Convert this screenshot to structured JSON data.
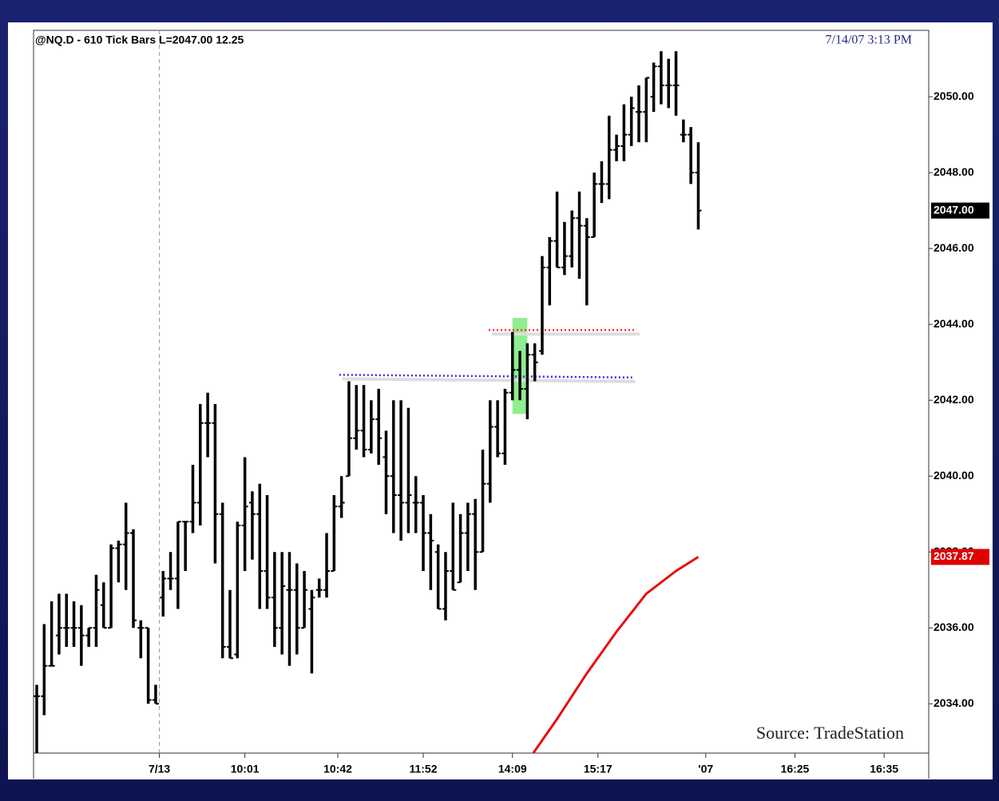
{
  "chart_data": {
    "type": "ohlc",
    "title": "@NQ.D - 610 Tick Bars  L=2047.00  12.25",
    "timestamp": "7/14/07 3:13 PM",
    "source": "Source: TradeStation",
    "color": "#000000",
    "open": [
      2034.2,
      2034.2,
      2035.0,
      2035.8,
      2036.0,
      2036.0,
      2036.0,
      2035.8,
      2036.0,
      2036.6,
      2036.0,
      2038.1,
      2038.2,
      2038.5,
      2036.0,
      2036.0,
      2034.1,
      2036.8,
      2037.3,
      2037.3,
      2038.8,
      2038.8,
      2039.3,
      2041.4,
      2041.4,
      2039.0,
      2035.5,
      2035.3,
      2038.7,
      2039.3,
      2039.0,
      2037.5,
      2036.8,
      2036.0,
      2037.0,
      2037.0,
      2036.0,
      2036.5,
      2037.0,
      2037.0,
      2037.5,
      2039.2,
      2040.0,
      2041.0,
      2041.2,
      2040.7,
      2041.5,
      2040.5,
      2040.0,
      2039.5,
      2039.3,
      2039.3,
      2039.3,
      2038.5,
      2038.0,
      2036.5,
      2037.5,
      2037.2,
      2038.5,
      2039.0,
      2038.0,
      2039.8,
      2041.3,
      2040.6,
      2042.2,
      2042.8,
      2042.3,
      2043.2,
      2043.3,
      2045.5,
      2046.2,
      2045.5,
      2045.8,
      2046.8,
      2046.6,
      2046.3,
      2047.7,
      2047.7,
      2048.6,
      2048.7,
      2049.0,
      2049.6,
      2049.6,
      2050.0,
      2050.8,
      2050.3,
      2050.3,
      2049.0,
      2049.0,
      2048.0
    ],
    "high": [
      2034.5,
      2036.1,
      2036.7,
      2036.9,
      2036.9,
      2036.7,
      2036.6,
      2036.0,
      2037.4,
      2037.2,
      2038.2,
      2038.3,
      2039.3,
      2038.6,
      2036.2,
      2036.0,
      2034.5,
      2037.5,
      2038.0,
      2038.8,
      2038.8,
      2040.3,
      2041.9,
      2042.2,
      2041.9,
      2039.3,
      2037.0,
      2038.8,
      2040.5,
      2039.6,
      2039.8,
      2039.5,
      2038.0,
      2038.0,
      2038.0,
      2037.7,
      2037.5,
      2037.0,
      2037.3,
      2038.5,
      2039.5,
      2040.0,
      2042.5,
      2042.4,
      2042.4,
      2042.0,
      2042.3,
      2041.2,
      2042.0,
      2042.0,
      2041.8,
      2040.0,
      2039.5,
      2039.0,
      2038.2,
      2038.0,
      2039.3,
      2039.0,
      2039.3,
      2039.4,
      2040.7,
      2042.0,
      2042.0,
      2042.3,
      2043.8,
      2043.3,
      2043.5,
      2043.5,
      2045.8,
      2046.3,
      2047.5,
      2046.7,
      2047.0,
      2047.5,
      2046.8,
      2048.0,
      2048.3,
      2049.5,
      2049.0,
      2049.8,
      2050.0,
      2050.3,
      2050.5,
      2050.9,
      2051.2,
      2051.0,
      2051.2,
      2049.4,
      2049.2,
      2048.8
    ],
    "low": [
      2032.7,
      2033.7,
      2035.0,
      2035.3,
      2035.5,
      2035.5,
      2035.0,
      2035.5,
      2035.5,
      2036.0,
      2036.0,
      2037.2,
      2037.0,
      2036.0,
      2035.2,
      2034.0,
      2034.0,
      2036.3,
      2037.0,
      2036.5,
      2037.5,
      2038.5,
      2038.7,
      2040.5,
      2037.7,
      2035.2,
      2035.2,
      2035.2,
      2037.5,
      2037.8,
      2036.5,
      2036.5,
      2035.5,
      2035.3,
      2035.0,
      2035.3,
      2036.0,
      2034.8,
      2036.8,
      2036.8,
      2037.5,
      2038.9,
      2040.0,
      2040.7,
      2040.5,
      2040.6,
      2040.3,
      2039.0,
      2038.5,
      2038.3,
      2038.5,
      2038.5,
      2037.5,
      2037.0,
      2036.5,
      2036.2,
      2037.0,
      2037.2,
      2037.5,
      2037.0,
      2038.0,
      2039.3,
      2040.5,
      2040.3,
      2042.0,
      2042.0,
      2041.5,
      2042.5,
      2043.2,
      2044.5,
      2045.5,
      2045.3,
      2045.5,
      2045.2,
      2044.5,
      2046.3,
      2047.2,
      2047.3,
      2048.3,
      2048.3,
      2048.7,
      2048.8,
      2048.8,
      2049.6,
      2049.8,
      2049.7,
      2049.5,
      2048.8,
      2047.7,
      2046.5
    ],
    "close": [
      2034.2,
      2035.0,
      2035.0,
      2036.0,
      2036.0,
      2036.0,
      2035.8,
      2036.0,
      2037.0,
      2036.0,
      2038.1,
      2038.2,
      2038.5,
      2036.2,
      2036.0,
      2034.1,
      2034.0,
      2037.3,
      2037.3,
      2038.8,
      2038.8,
      2039.3,
      2041.4,
      2041.4,
      2039.0,
      2035.5,
      2035.2,
      2038.7,
      2039.2,
      2039.0,
      2037.5,
      2036.8,
      2036.0,
      2037.1,
      2037.0,
      2036.0,
      2037.0,
      2036.8,
      2037.0,
      2037.5,
      2039.2,
      2039.3,
      2041.0,
      2041.2,
      2040.7,
      2041.5,
      2041.0,
      2040.0,
      2039.5,
      2039.3,
      2039.5,
      2039.3,
      2038.5,
      2038.3,
      2036.5,
      2037.5,
      2037.0,
      2038.5,
      2039.0,
      2038.0,
      2039.8,
      2041.3,
      2040.6,
      2042.2,
      2042.8,
      2042.3,
      2043.2,
      2043.0,
      2045.5,
      2046.2,
      2045.5,
      2045.8,
      2046.8,
      2046.6,
      2046.3,
      2047.7,
      2047.7,
      2048.6,
      2048.7,
      2049.0,
      2049.7,
      2049.6,
      2050.5,
      2050.8,
      2050.3,
      2050.3,
      2050.3,
      2049.0,
      2048.0,
      2047.0
    ],
    "xlim": [
      -0.43,
      120
    ],
    "xticks": [
      {
        "value": 16.5,
        "label": "7/13"
      },
      {
        "value": 28,
        "label": "10:01"
      },
      {
        "value": 40.5,
        "label": "10:42"
      },
      {
        "value": 52,
        "label": "11:52"
      },
      {
        "value": 64,
        "label": "14:09"
      },
      {
        "value": 75.5,
        "label": "15:17"
      },
      {
        "value": 90,
        "label": "'07"
      },
      {
        "value": 102,
        "label": "16:25"
      },
      {
        "value": 114,
        "label": "16:35"
      }
    ],
    "separator_x": 16.5,
    "ylim": [
      2032.7,
      2051.75
    ],
    "yticks": [
      {
        "value": 2034,
        "label": "2034.00"
      },
      {
        "value": 2036,
        "label": "2036.00"
      },
      {
        "value": 2038,
        "label": "2038.00"
      },
      {
        "value": 2040,
        "label": "2040.00"
      },
      {
        "value": 2042,
        "label": "2042.00"
      },
      {
        "value": 2044,
        "label": "2044.00"
      },
      {
        "value": 2046,
        "label": "2046.00"
      },
      {
        "value": 2048,
        "label": "2048.00"
      },
      {
        "value": 2050,
        "label": "2050.00"
      }
    ],
    "last_price": {
      "value": 2047,
      "label": "2047.00"
    },
    "overlay": {
      "color": "#e81010",
      "x": [
        66.8,
        70,
        74,
        78,
        82,
        86,
        89
      ],
      "values": [
        2032.7,
        2033.6,
        2034.8,
        2035.9,
        2036.9,
        2037.5,
        2037.87
      ],
      "last": {
        "value": 2037.87,
        "label": "2037.87"
      }
    },
    "levels": [
      {
        "color": "#ff3030",
        "x": [
          60.8,
          80.7
        ],
        "values": [
          2043.85,
          2043.85
        ]
      },
      {
        "color": "#2a2aff",
        "x": [
          40.7,
          80.1
        ],
        "values": [
          2042.67,
          2042.6
        ]
      }
    ],
    "highlight": {
      "color": "#90ee90",
      "x": [
        64,
        66
      ],
      "y": [
        2041.64,
        2044.17
      ]
    }
  }
}
